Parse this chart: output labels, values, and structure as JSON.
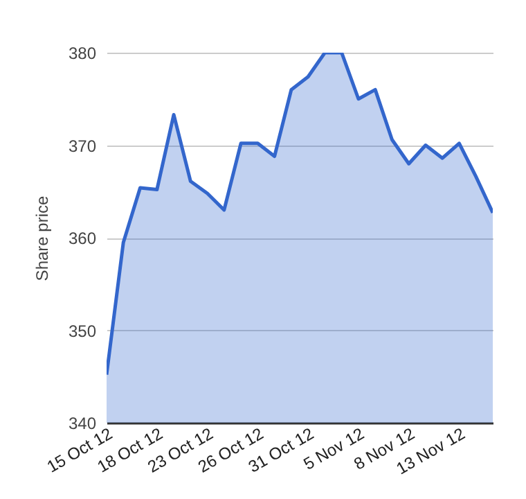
{
  "chart_data": {
    "type": "area",
    "ylabel": "Share price",
    "categories": [
      "15 Oct 12",
      null,
      null,
      "18 Oct 12",
      null,
      null,
      "23 Oct 12",
      null,
      null,
      "26 Oct 12",
      null,
      null,
      "31 Oct 12",
      null,
      null,
      "5 Nov 12",
      null,
      null,
      "8 Nov 12",
      null,
      null,
      "13 Nov 12",
      null,
      null
    ],
    "series": [
      {
        "color": "#3366cc",
        "values": [
          345.2,
          359.5,
          365.4,
          365.2,
          373.3,
          366.1,
          364.8,
          363.0,
          370.2,
          370.2,
          368.8,
          376.0,
          377.4,
          380.0,
          380.0,
          375.0,
          376.0,
          370.6,
          368.0,
          370.0,
          368.6,
          370.2,
          366.6,
          362.7
        ]
      }
    ],
    "ylim": [
      340,
      380
    ],
    "yticks": [
      340,
      350,
      360,
      370,
      380
    ],
    "grid": "y"
  }
}
